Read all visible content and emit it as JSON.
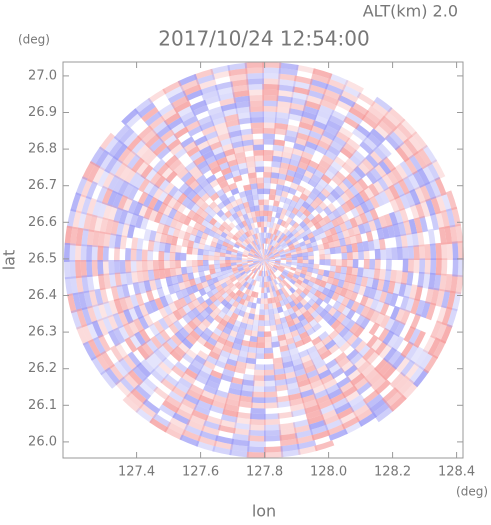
{
  "chart_data": {
    "type": "ppi",
    "title": "2017/10/24 12:54:00",
    "subtitle": "ALT(km)  2.0",
    "y_unit": "(deg)",
    "x_unit": "(deg)",
    "ylabel": "lat",
    "xlabel": "lon",
    "xlim": [
      127.17,
      128.42
    ],
    "ylim": [
      25.956,
      27.038
    ],
    "xticks": [
      127.4,
      127.6,
      127.8,
      {
        "value": 128,
        "label": "128.0"
      },
      128.2,
      128.4
    ],
    "yticks": [
      {
        "value": 26,
        "label": "26.0"
      },
      26.1,
      26.2,
      26.3,
      26.4,
      26.5,
      26.6,
      26.7,
      26.8,
      26.9,
      {
        "value": 27,
        "label": "27.0"
      }
    ]
  }
}
